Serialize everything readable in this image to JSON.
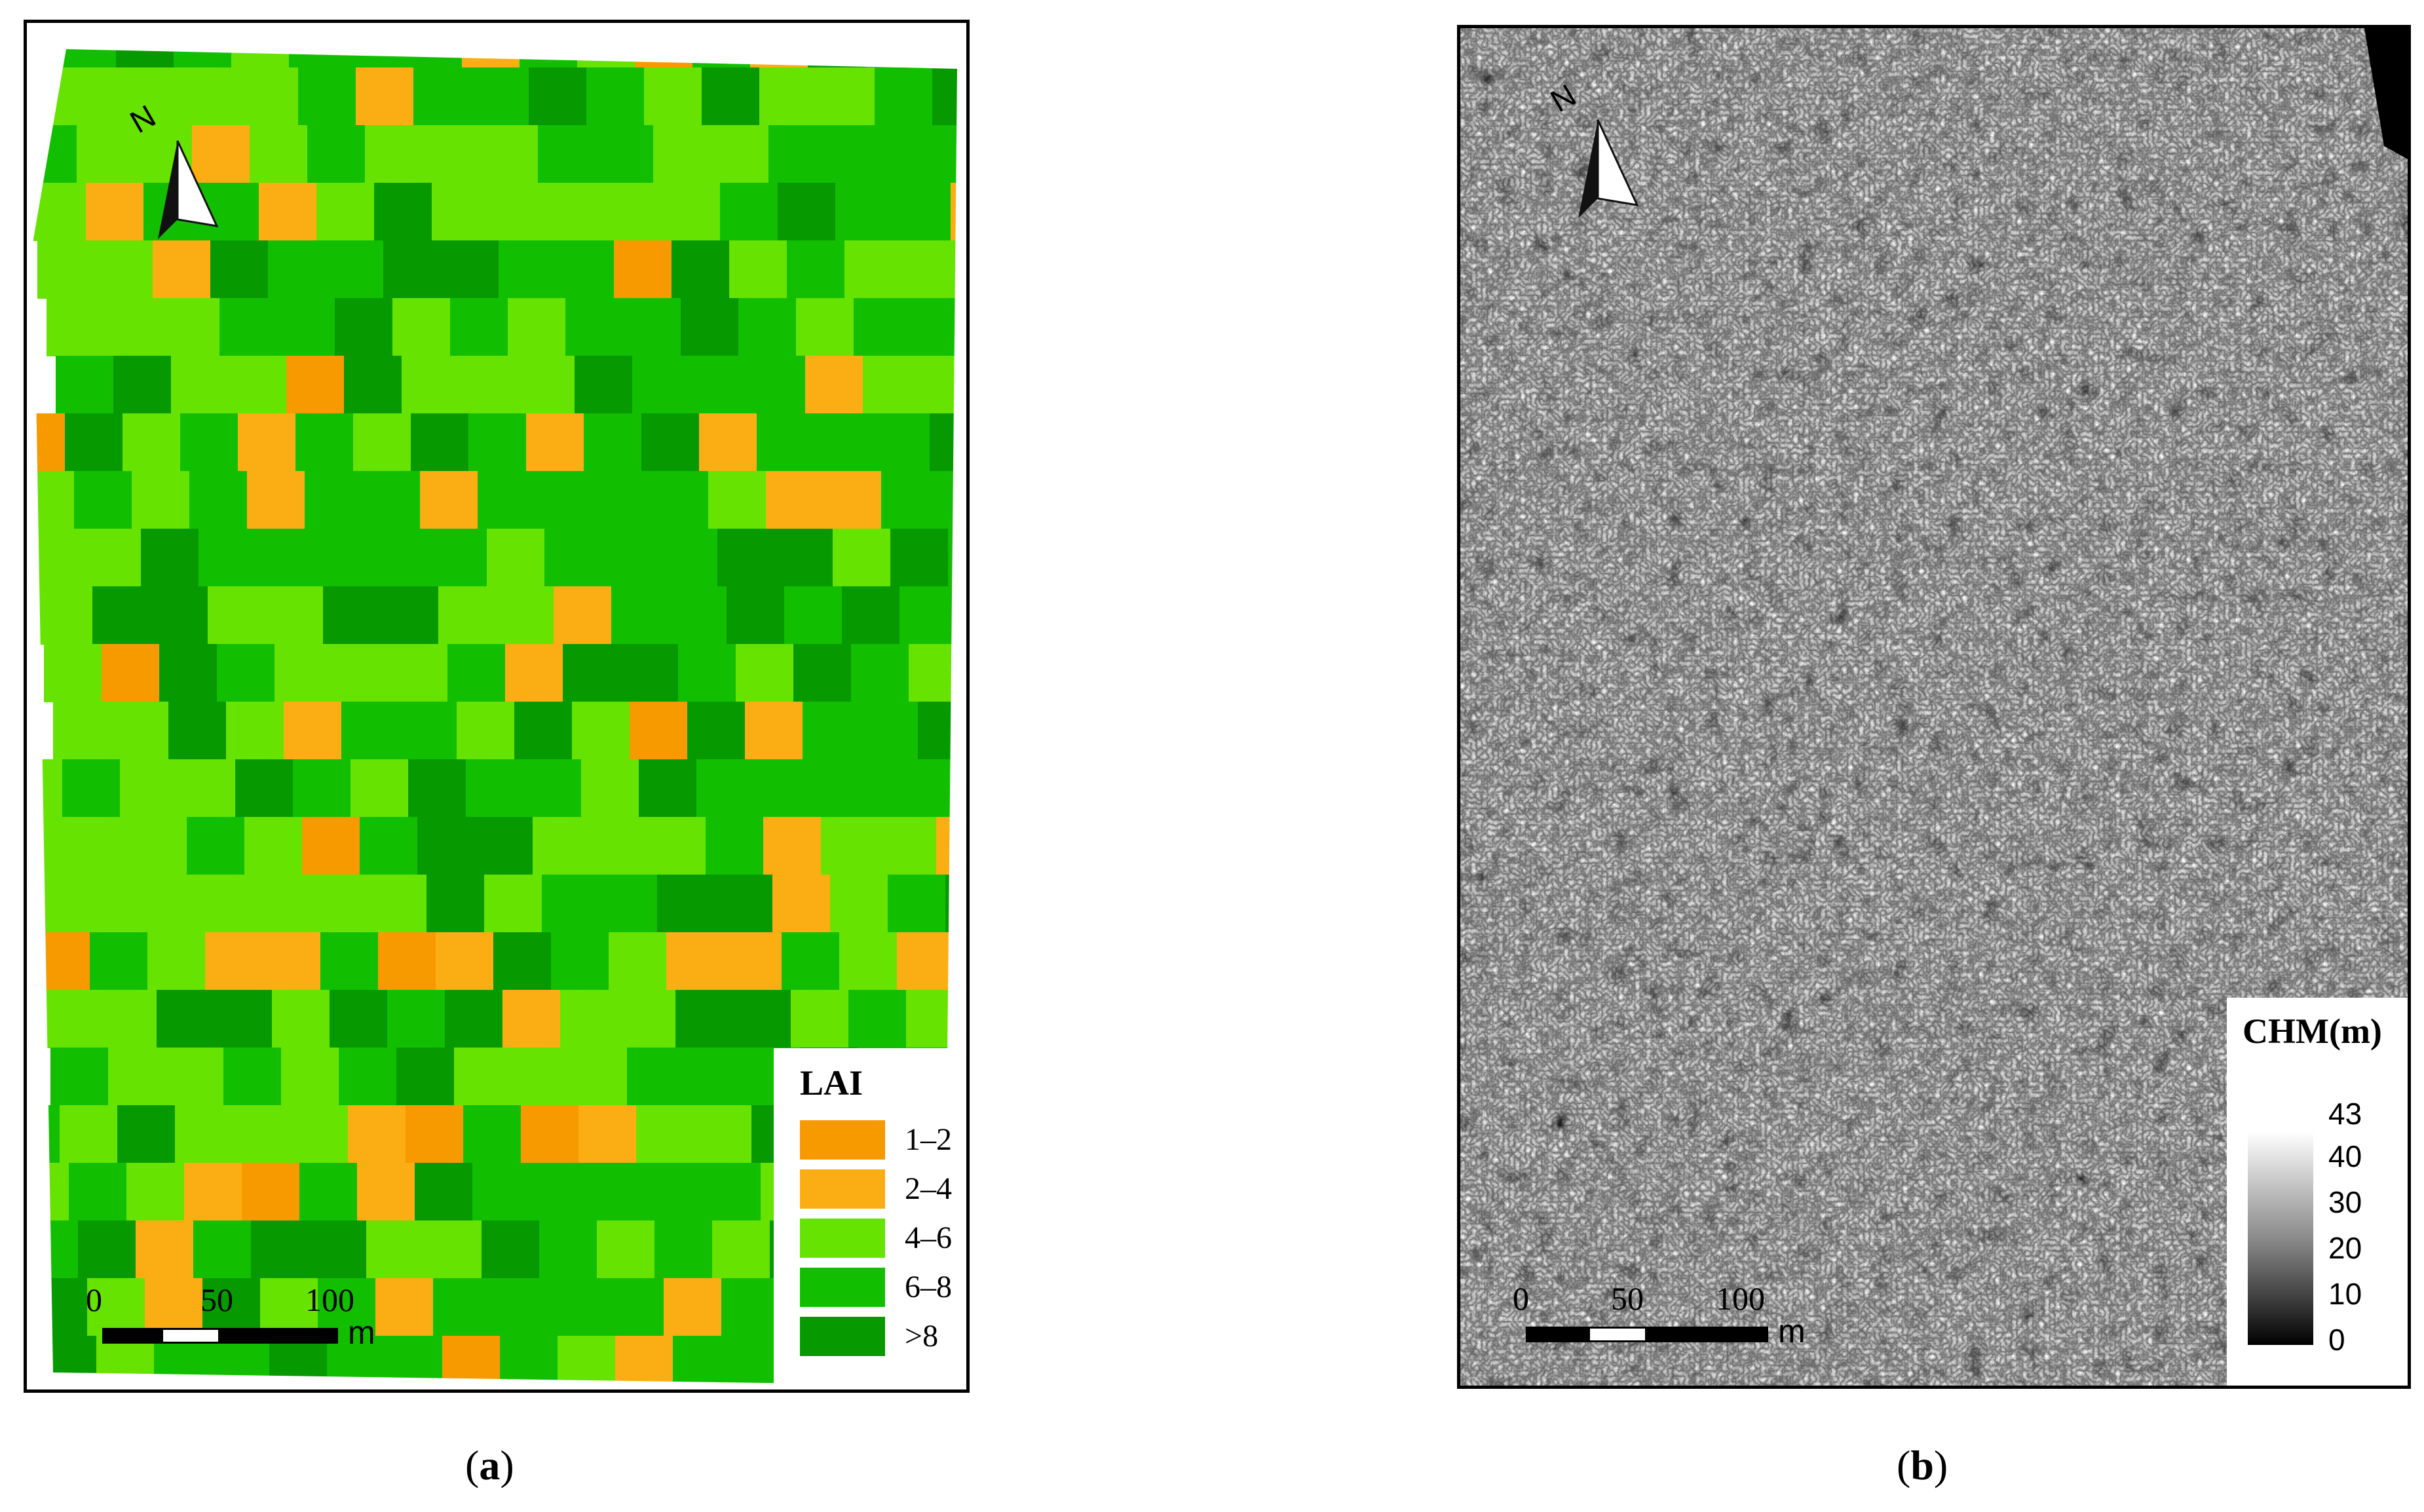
{
  "figure": {
    "caption_a": {
      "open": "(",
      "letter": "a",
      "close": ")"
    },
    "caption_b": {
      "open": "(",
      "letter": "b",
      "close": ")"
    }
  },
  "panel_a": {
    "legend": {
      "title": "LAI",
      "classes": [
        {
          "label": "1–2",
          "color": "#F79A00"
        },
        {
          "label": "2–4",
          "color": "#FBAE13"
        },
        {
          "label": "4–6",
          "color": "#66E300"
        },
        {
          "label": "6–8",
          "color": "#12BE00"
        },
        {
          "label": ">8",
          "color": "#079A00"
        }
      ]
    },
    "north_label": "N",
    "scalebar": {
      "labels": [
        "0",
        "50",
        "100"
      ],
      "unit": "m"
    }
  },
  "panel_b": {
    "legend": {
      "title": "CHM(m)",
      "ticks": [
        "43",
        "40",
        "30",
        "20",
        "10",
        "0"
      ],
      "ramp_colors": [
        "#ffffff",
        "#000000"
      ]
    },
    "north_label": "N",
    "scalebar": {
      "labels": [
        "0",
        "50",
        "100"
      ],
      "unit": "m"
    }
  }
}
